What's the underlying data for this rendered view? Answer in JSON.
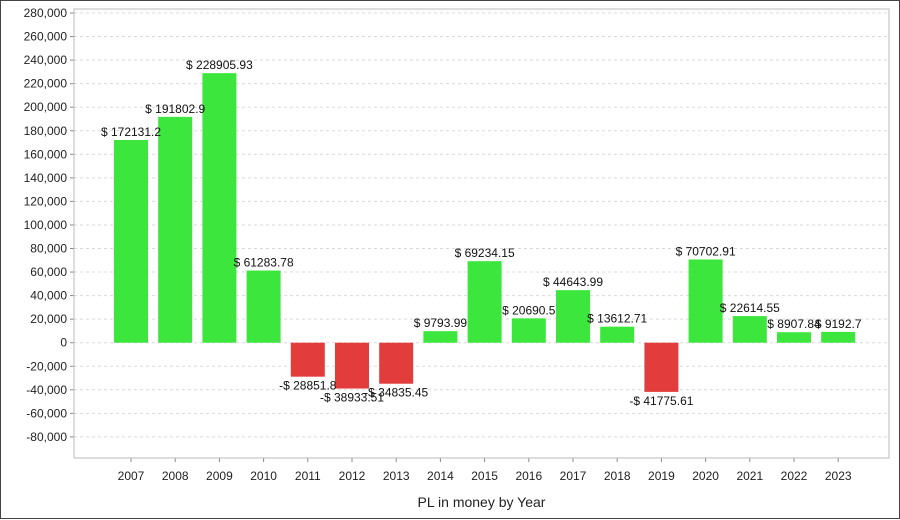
{
  "chart_data": {
    "type": "bar",
    "title": "",
    "xlabel": "PL in money by Year",
    "ylabel": "",
    "ylim": [
      -100000,
      280000
    ],
    "yticks": [
      280000,
      260000,
      240000,
      220000,
      200000,
      180000,
      160000,
      140000,
      120000,
      100000,
      80000,
      60000,
      40000,
      20000,
      0,
      -20000,
      -40000,
      -60000,
      -80000
    ],
    "ytick_labels": [
      "280,000",
      "260,000",
      "240,000",
      "220,000",
      "200,000",
      "180,000",
      "160,000",
      "140,000",
      "120,000",
      "100,000",
      "80,000",
      "60,000",
      "40,000",
      "20,000",
      "0",
      "-20,000",
      "-40,000",
      "-60,000",
      "-80,000"
    ],
    "grid": true,
    "legend": "none",
    "categories": [
      "2007",
      "2008",
      "2009",
      "2010",
      "2011",
      "2012",
      "2013",
      "2014",
      "2015",
      "2016",
      "2017",
      "2018",
      "2019",
      "2020",
      "2021",
      "2022",
      "2023"
    ],
    "values": [
      172131.2,
      191802.9,
      228905.93,
      61283.78,
      -28851.8,
      -38933.51,
      -34835.45,
      9793.99,
      69234.15,
      20690.5,
      44643.99,
      13612.71,
      -41775.61,
      70702.91,
      22614.55,
      8907.84,
      9192.7
    ],
    "data_labels": [
      "$ 172131.2",
      "$ 191802.9",
      "$ 228905.93",
      "$ 61283.78",
      "-$ 28851.8",
      "-$ 38933.51",
      "-$ 34835.45",
      "$ 9793.99",
      "$ 69234.15",
      "$ 20690.5",
      "$ 44643.99",
      "$ 13612.71",
      "-$ 41775.61",
      "$ 70702.91",
      "$ 22614.55",
      "$ 8907.84",
      "$ 9192.7"
    ],
    "colors": {
      "positive": "#3ce63c",
      "negative": "#e23c3c",
      "grid": "#d9d9d9",
      "axis": "#888888"
    }
  }
}
